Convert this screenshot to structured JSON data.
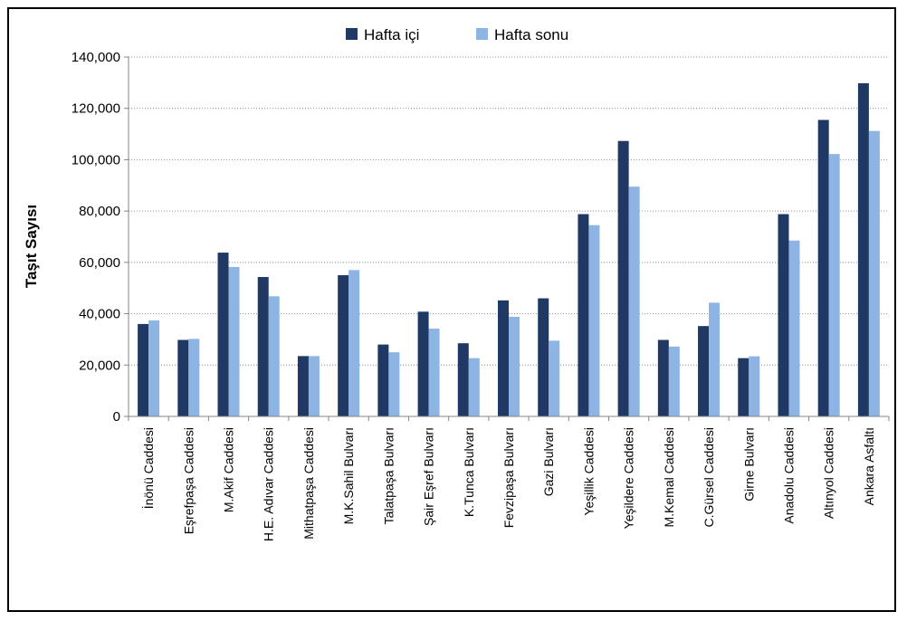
{
  "chart_data": {
    "type": "bar",
    "title": "",
    "xlabel": "",
    "ylabel": "Taşıt Sayısı",
    "ylim": [
      0,
      140000
    ],
    "yticks": [
      0,
      20000,
      40000,
      60000,
      80000,
      100000,
      120000,
      140000
    ],
    "ytick_labels": [
      "0",
      "20,000",
      "40,000",
      "60,000",
      "80,000",
      "100,000",
      "120,000",
      "140,000"
    ],
    "grid": "horizontal dotted",
    "legend_position": "top-center",
    "categories": [
      "İnönü Caddesi",
      "Eşrefpaşa Caddesi",
      "M.Akif Caddesi",
      "H.E. Adıvar Caddesi",
      "Mithatpaşa Caddesi",
      "M.K.Sahil Bulvarı",
      "Talatpaşa Bulvarı",
      "Şair Eşref Bulvarı",
      "K.Tunca Bulvarı",
      "Fevzipaşa Bulvarı",
      "Gazi Bulvarı",
      "Yeşillik Caddesi",
      "Yeşildere Caddesi",
      "M.Kemal Caddesi",
      "C.Gürsel Caddesi",
      "Girne Bulvarı",
      "Anadolu Caddesi",
      "Altınyol Caddesi",
      "Ankara Asfaltı"
    ],
    "series": [
      {
        "name": "Hafta içi",
        "color": "#1F3864",
        "values": [
          36000,
          29800,
          63800,
          54300,
          23500,
          55000,
          28000,
          40800,
          28500,
          45200,
          46000,
          78800,
          107300,
          29800,
          35200,
          22700,
          78800,
          115500,
          129800
        ]
      },
      {
        "name": "Hafta sonu",
        "color": "#8EB4E3",
        "values": [
          37400,
          30200,
          58200,
          46800,
          23500,
          57000,
          25000,
          34200,
          22700,
          38800,
          29500,
          74500,
          89500,
          27200,
          44300,
          23400,
          68500,
          102200,
          111200
        ]
      }
    ]
  }
}
